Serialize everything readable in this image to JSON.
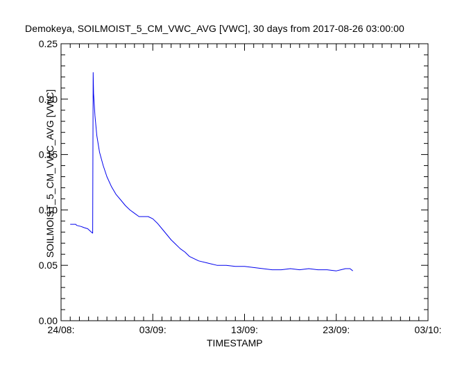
{
  "chart_data": {
    "type": "line",
    "title": "Demokeya, SOILMOIST_5_CM_VWC_AVG [VWC], 30 days from  2017-08-26 03:00:00",
    "xlabel": "TIMESTAMP",
    "ylabel": "SOILMOIST_5_CM_VWC_AVG [VWC]",
    "xlim_days_from_24_08": [
      0,
      40
    ],
    "ylim": [
      0.0,
      0.25
    ],
    "x_tick_labels": [
      {
        "day": 0,
        "label": "24/08:"
      },
      {
        "day": 10,
        "label": "03/09:"
      },
      {
        "day": 20,
        "label": "13/09:"
      },
      {
        "day": 30,
        "label": "23/09:"
      },
      {
        "day": 40,
        "label": "03/10:"
      }
    ],
    "y_tick_labels": [
      {
        "value": 0.0,
        "label": "0.00"
      },
      {
        "value": 0.05,
        "label": "0.05"
      },
      {
        "value": 0.1,
        "label": "0.10"
      },
      {
        "value": 0.15,
        "label": "0.15"
      },
      {
        "value": 0.2,
        "label": "0.20"
      },
      {
        "value": 0.25,
        "label": "0.25"
      }
    ],
    "series": [
      {
        "name": "SOILMOIST_5_CM_VWC_AVG",
        "color": "#0000ee",
        "x_days": [
          1.0,
          1.6,
          1.7,
          2.2,
          2.5,
          2.9,
          3.3,
          3.45,
          3.5,
          3.55,
          3.7,
          3.9,
          4.2,
          4.6,
          5.0,
          5.5,
          6.0,
          6.5,
          7.0,
          7.5,
          8.0,
          8.5,
          9.0,
          9.5,
          10.0,
          10.5,
          11.0,
          11.5,
          12.0,
          12.5,
          13.0,
          13.5,
          14.0,
          15.0,
          16.0,
          17.0,
          18.0,
          19.0,
          20.0,
          21.0,
          22.0,
          23.0,
          24.0,
          25.0,
          26.0,
          27.0,
          28.0,
          29.0,
          30.0,
          30.5,
          31.0,
          31.5,
          31.8
        ],
        "values": [
          0.087,
          0.087,
          0.086,
          0.085,
          0.084,
          0.083,
          0.08,
          0.079,
          0.224,
          0.205,
          0.185,
          0.167,
          0.152,
          0.14,
          0.13,
          0.121,
          0.114,
          0.109,
          0.104,
          0.1,
          0.097,
          0.094,
          0.094,
          0.094,
          0.092,
          0.088,
          0.083,
          0.078,
          0.073,
          0.069,
          0.065,
          0.062,
          0.058,
          0.054,
          0.052,
          0.05,
          0.05,
          0.049,
          0.049,
          0.048,
          0.047,
          0.046,
          0.046,
          0.047,
          0.046,
          0.047,
          0.046,
          0.046,
          0.045,
          0.046,
          0.047,
          0.047,
          0.045
        ]
      }
    ]
  }
}
